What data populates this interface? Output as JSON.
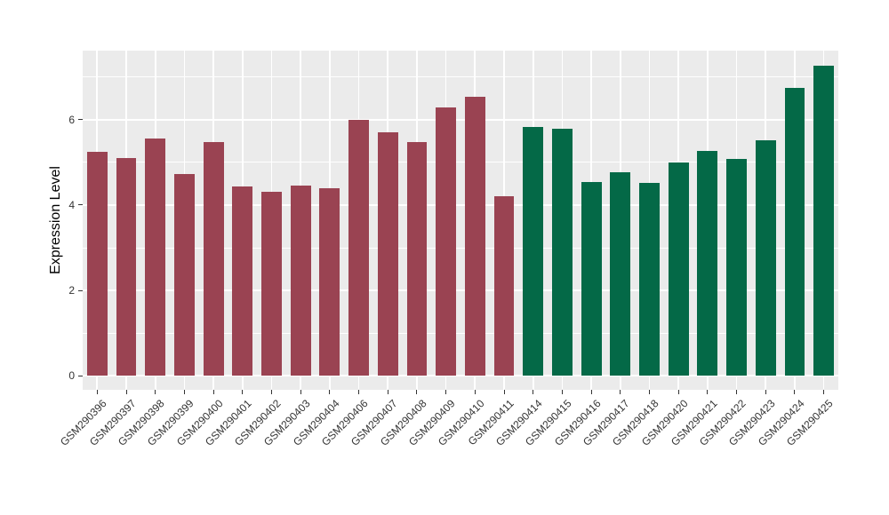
{
  "chart_data": {
    "type": "bar",
    "title": "",
    "xlabel": "",
    "ylabel": "Expression Level",
    "legend_position": "none",
    "grid": true,
    "panel_background": "#EBEBEB",
    "grid_color": "#FFFFFF",
    "axis_text_color": "#333333",
    "axis_title_color": "#000000",
    "ylim": [
      -0.33,
      7.62
    ],
    "yticks": [
      0,
      2,
      4,
      6
    ],
    "yminor": [
      1,
      3,
      5,
      7
    ],
    "categories": [
      "GSM290396",
      "GSM290397",
      "GSM290398",
      "GSM290399",
      "GSM290400",
      "GSM290401",
      "GSM290402",
      "GSM290403",
      "GSM290404",
      "GSM290406",
      "GSM290407",
      "GSM290408",
      "GSM290409",
      "GSM290410",
      "GSM290411",
      "GSM290414",
      "GSM290415",
      "GSM290416",
      "GSM290417",
      "GSM290418",
      "GSM290420",
      "GSM290421",
      "GSM290422",
      "GSM290423",
      "GSM290424",
      "GSM290425"
    ],
    "series": [
      {
        "name": "Expression Level",
        "values": [
          5.25,
          5.1,
          5.55,
          4.72,
          5.48,
          4.43,
          4.32,
          4.45,
          4.39,
          6.0,
          5.7,
          5.48,
          6.28,
          6.53,
          4.21,
          5.83,
          5.79,
          4.53,
          4.76,
          4.51,
          5.0,
          5.27,
          5.08,
          5.52,
          6.74,
          7.27
        ]
      }
    ],
    "bar_groups": [
      0,
      0,
      0,
      0,
      0,
      0,
      0,
      0,
      0,
      0,
      0,
      0,
      0,
      0,
      0,
      1,
      1,
      1,
      1,
      1,
      1,
      1,
      1,
      1,
      1,
      1
    ],
    "group_colors": [
      "#9A4352",
      "#046947"
    ]
  }
}
